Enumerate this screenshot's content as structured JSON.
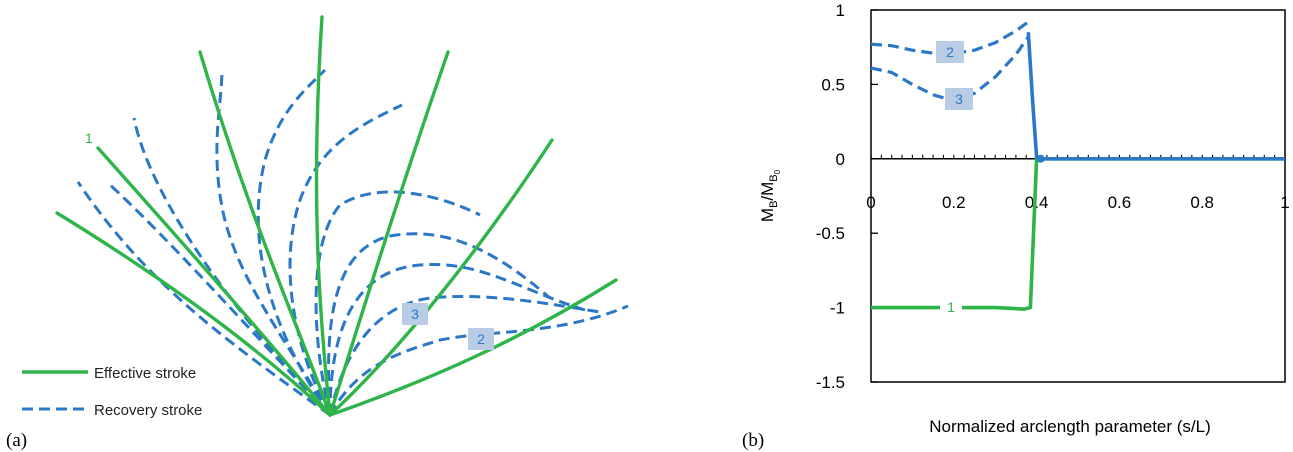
{
  "panel_a": {
    "label": "(a)",
    "legend": [
      {
        "label": "Effective stroke",
        "style": "solid",
        "color": "#2fb44a"
      },
      {
        "label": "Recovery stroke",
        "style": "dashed",
        "color": "#2b78c6"
      }
    ],
    "annotations": [
      "1",
      "3",
      "2"
    ]
  },
  "panel_b": {
    "label": "(b)",
    "annotations": [
      "2",
      "3",
      "1"
    ]
  },
  "chart_data": {
    "type": "line",
    "title": "",
    "xlabel": "Normalized arclength parameter (s/L)",
    "ylabel": "M_B/M_B0",
    "ylabel_parts": {
      "main": "M",
      "sub": "B",
      "slash": "/M",
      "sub2": "B",
      "subsub": "0"
    },
    "xlim": [
      0,
      1
    ],
    "ylim": [
      -1.5,
      1
    ],
    "x_ticks": [
      "0",
      "0.2",
      "0.4",
      "0.6",
      "0.8",
      "1"
    ],
    "y_ticks": [
      "1",
      "0.5",
      "0",
      "-0.5",
      "-1",
      "-1.5"
    ],
    "grid": false,
    "series": [
      {
        "name": "1",
        "color": "#2fb44a",
        "style": "solid",
        "x": [
          0,
          0.05,
          0.1,
          0.2,
          0.3,
          0.37,
          0.385,
          0.4,
          0.5,
          0.6,
          0.8,
          1.0
        ],
        "y": [
          -1.0,
          -1.0,
          -1.0,
          -1.0,
          -1.0,
          -1.01,
          -1.0,
          0.0,
          0.0,
          0.0,
          0.0,
          0.0
        ]
      },
      {
        "name": "2",
        "color": "#2b78c6",
        "style": "dashed",
        "x": [
          0,
          0.05,
          0.1,
          0.15,
          0.2,
          0.25,
          0.3,
          0.35,
          0.38
        ],
        "y": [
          0.77,
          0.76,
          0.73,
          0.71,
          0.71,
          0.73,
          0.78,
          0.86,
          0.92
        ]
      },
      {
        "name": "3",
        "color": "#2b78c6",
        "style": "dashed",
        "x": [
          0,
          0.05,
          0.1,
          0.15,
          0.2,
          0.25,
          0.3,
          0.35,
          0.38
        ],
        "y": [
          0.61,
          0.58,
          0.5,
          0.43,
          0.39,
          0.44,
          0.55,
          0.7,
          0.82
        ]
      },
      {
        "name": "",
        "color": "#2b78c6",
        "style": "solid",
        "x": [
          0.38,
          0.39,
          0.4,
          0.41,
          0.5,
          0.6,
          0.8,
          1.0
        ],
        "y": [
          0.85,
          0.4,
          0.01,
          0.0,
          0.0,
          0.0,
          0.0,
          0.0
        ]
      }
    ]
  }
}
